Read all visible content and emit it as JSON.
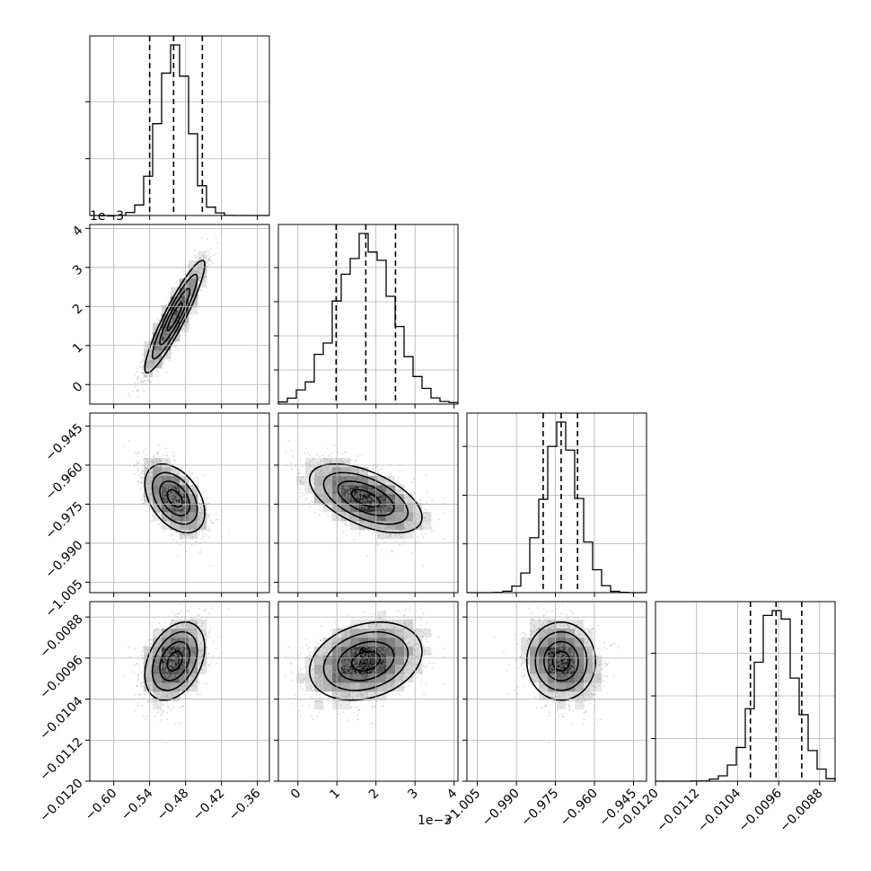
{
  "chart_data": {
    "type": "corner",
    "grid": true,
    "parameters": [
      {
        "index": 0,
        "range": [
          -0.64,
          -0.34
        ],
        "ticks": [
          -0.6,
          -0.54,
          -0.48,
          -0.42,
          -0.36
        ],
        "tick_labels": [
          "−0.60",
          "−0.54",
          "−0.48",
          "−0.42",
          "−0.36"
        ],
        "offset_label": "",
        "mean": -0.498,
        "sd": 0.025,
        "quantiles": [
          -0.54,
          -0.5,
          -0.452
        ]
      },
      {
        "index": 1,
        "range": [
          -0.0005,
          0.0041
        ],
        "ticks": [
          0,
          0.001,
          0.002,
          0.003,
          0.004
        ],
        "tick_labels": [
          "0",
          "1",
          "2",
          "3",
          "4"
        ],
        "offset_label": "1e−3",
        "mean": 0.00174,
        "sd": 0.00072,
        "quantiles": [
          0.00098,
          0.00174,
          0.0025
        ]
      },
      {
        "index": 2,
        "range": [
          -1.009,
          -0.94
        ],
        "ticks": [
          -1.005,
          -0.99,
          -0.975,
          -0.96,
          -0.945
        ],
        "tick_labels": [
          "−1.005",
          "−0.990",
          "−0.975",
          "−0.960",
          "−0.945"
        ],
        "offset_label": "",
        "mean": -0.9728,
        "sd": 0.0066,
        "quantiles": [
          -0.9797,
          -0.9728,
          -0.9665
        ]
      },
      {
        "index": 3,
        "range": [
          -0.012,
          -0.0085
        ],
        "ticks": [
          -0.012,
          -0.0112,
          -0.0104,
          -0.0096,
          -0.0088
        ],
        "tick_labels": [
          "−0.0120",
          "−0.0112",
          "−0.0104",
          "−0.0096",
          "−0.0088"
        ],
        "offset_label": "",
        "mean": -0.00966,
        "sd": 0.00038,
        "quantiles": [
          -0.01015,
          -0.00965,
          -0.00915
        ]
      }
    ],
    "histograms": [
      {
        "param": 0,
        "bins": 20,
        "ticks_y": [
          0.333,
          0.667
        ]
      },
      {
        "param": 1,
        "bins": 20,
        "ticks_y": [
          0.2,
          0.4,
          0.6,
          0.8
        ]
      },
      {
        "param": 2,
        "bins": 20,
        "ticks_y": [
          0.286,
          0.571,
          0.857
        ]
      },
      {
        "param": 3,
        "bins": 20,
        "ticks_y": [
          0.25,
          0.5,
          0.75
        ]
      }
    ],
    "correlations": [
      {
        "x": 0,
        "y": 1,
        "rho": 0.92
      },
      {
        "x": 0,
        "y": 2,
        "rho": -0.42
      },
      {
        "x": 1,
        "y": 2,
        "rho": -0.55
      },
      {
        "x": 0,
        "y": 3,
        "rho": 0.35
      },
      {
        "x": 1,
        "y": 3,
        "rho": 0.25
      },
      {
        "x": 2,
        "y": 3,
        "rho": 0.0
      }
    ],
    "contour_levels_sigma": [
      0.5,
      1.0,
      1.5,
      2.0
    ],
    "quantile_levels": [
      0.16,
      0.5,
      0.84
    ]
  }
}
